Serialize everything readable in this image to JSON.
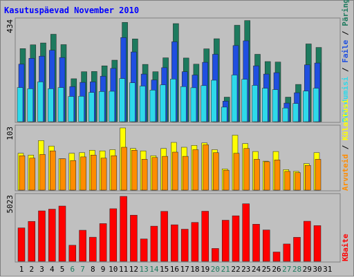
{
  "chart_data": [
    {
      "type": "bar",
      "title": "Kasutuspäevad November 2010",
      "categories": [
        "1",
        "2",
        "3",
        "4",
        "5",
        "6",
        "7",
        "8",
        "9",
        "10",
        "11",
        "12",
        "13",
        "14",
        "15",
        "16",
        "17",
        "18",
        "19",
        "20",
        "21",
        "22",
        "23",
        "24",
        "25",
        "26",
        "27",
        "28",
        "29",
        "30",
        "31"
      ],
      "weekend_days": [
        "6",
        "7",
        "13",
        "14",
        "20",
        "21",
        "27",
        "28"
      ],
      "ylabel_top": "434",
      "series": [
        {
          "name": "Päringuid",
          "color": "#1d7a5e",
          "values": [
            310,
            326,
            334,
            371,
            327,
            182,
            212,
            213,
            237,
            261,
            421,
            351,
            243,
            212,
            271,
            416,
            270,
            244,
            309,
            352,
            104,
            409,
            429,
            286,
            255,
            253,
            104,
            158,
            330,
            315,
            0
          ]
        },
        {
          "name": "Faile",
          "color": "#1f4fe0",
          "values": [
            244,
            269,
            278,
            303,
            272,
            149,
            167,
            169,
            193,
            226,
            357,
            296,
            202,
            177,
            229,
            339,
            212,
            198,
            252,
            286,
            87,
            323,
            343,
            237,
            202,
            208,
            79,
            123,
            241,
            249,
            0
          ]
        },
        {
          "name": "Pöördumisi",
          "color": "#2ed9ea",
          "values": [
            145,
            140,
            169,
            140,
            145,
            107,
            108,
            124,
            128,
            129,
            183,
            165,
            151,
            134,
            156,
            181,
            149,
            144,
            153,
            176,
            62,
            198,
            180,
            154,
            142,
            136,
            58,
            77,
            130,
            142,
            0
          ]
        }
      ],
      "legend": [
        "Pöördumisi",
        "Faile",
        "Päringuid"
      ]
    },
    {
      "type": "bar",
      "categories": [
        "1",
        "2",
        "3",
        "4",
        "5",
        "6",
        "7",
        "8",
        "9",
        "10",
        "11",
        "12",
        "13",
        "14",
        "15",
        "16",
        "17",
        "18",
        "19",
        "20",
        "21",
        "22",
        "23",
        "24",
        "25",
        "26",
        "27",
        "28",
        "29",
        "30",
        "31"
      ],
      "ylabel_top": "103",
      "series": [
        {
          "name": "Külastusi",
          "color": "#ffff00",
          "values": [
            61,
            58,
            82,
            73,
            52,
            61,
            62,
            66,
            65,
            67,
            103,
            69,
            65,
            57,
            69,
            79,
            71,
            74,
            78,
            67,
            35,
            91,
            77,
            64,
            48,
            64,
            34,
            31,
            44,
            62,
            0
          ]
        },
        {
          "name": "Arvuteid",
          "color": "#ff8c00",
          "values": [
            57,
            53,
            59,
            65,
            52,
            49,
            55,
            58,
            53,
            57,
            71,
            66,
            51,
            54,
            56,
            63,
            56,
            67,
            75,
            62,
            33,
            61,
            69,
            51,
            47,
            50,
            31,
            29,
            41,
            51,
            0
          ]
        }
      ],
      "legend": [
        "Arvuteid",
        "Külastusi"
      ]
    },
    {
      "type": "bar",
      "categories": [
        "1",
        "2",
        "3",
        "4",
        "5",
        "6",
        "7",
        "8",
        "9",
        "10",
        "11",
        "12",
        "13",
        "14",
        "15",
        "16",
        "17",
        "18",
        "19",
        "20",
        "21",
        "22",
        "23",
        "24",
        "25",
        "26",
        "27",
        "28",
        "29",
        "30",
        "31"
      ],
      "ylabel_top": "5023",
      "series": [
        {
          "name": "KBaite",
          "color": "#ff0000",
          "values": [
            2586,
            3086,
            3900,
            4035,
            4275,
            1244,
            2402,
            1867,
            2919,
            4069,
            5023,
            3572,
            1732,
            2721,
            3861,
            2825,
            2486,
            3011,
            3876,
            996,
            3181,
            3520,
            4449,
            2870,
            2426,
            722,
            1341,
            1862,
            3099,
            2765,
            0
          ]
        }
      ],
      "legend": [
        "KBaite"
      ]
    }
  ],
  "colors": {
    "background": "#c0c0c0",
    "title_text": "#0000ff",
    "axis_label_text": "#000000",
    "weekday_label": "#000000",
    "weekend_label": "#1d7a5e",
    "separator": "#000000"
  }
}
